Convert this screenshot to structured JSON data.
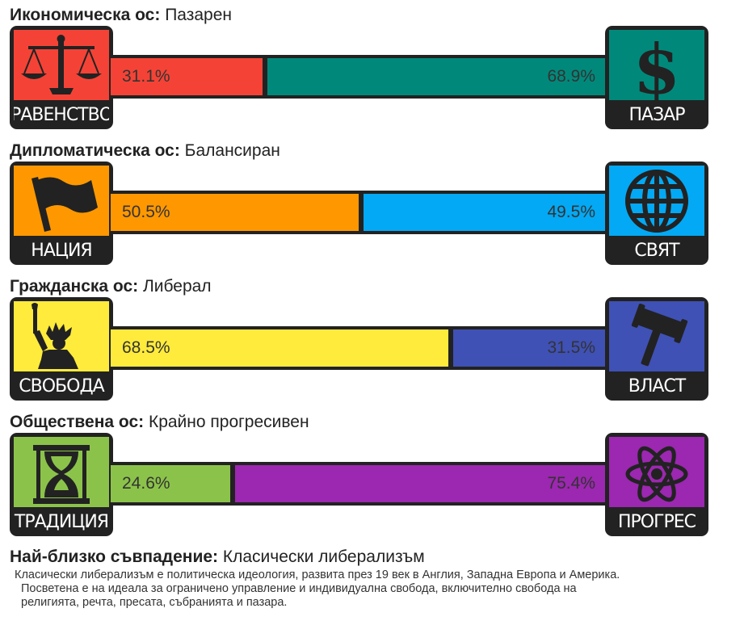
{
  "axes": [
    {
      "axis_name": "Икономическа ос:",
      "axis_value": "Пазарен",
      "left": {
        "label": "РАВЕНСТВО",
        "icon": "scales-icon",
        "color": "#f44336",
        "percent_text": "31.1%",
        "percent": 31.1
      },
      "right": {
        "label": "ПАЗАР",
        "icon": "dollar-icon",
        "color": "#00897b",
        "percent_text": "68.9%",
        "percent": 68.9
      }
    },
    {
      "axis_name": "Дипломатическа ос:",
      "axis_value": "Балансиран",
      "left": {
        "label": "НАЦИЯ",
        "icon": "flag-icon",
        "color": "#ff9800",
        "percent_text": "50.5%",
        "percent": 50.5
      },
      "right": {
        "label": "СВЯТ",
        "icon": "globe-icon",
        "color": "#03a9f4",
        "percent_text": "49.5%",
        "percent": 49.5
      }
    },
    {
      "axis_name": "Гражданска ос:",
      "axis_value": "Либерал",
      "left": {
        "label": "СВОБОДА",
        "icon": "statue-of-liberty-icon",
        "color": "#ffeb3b",
        "percent_text": "68.5%",
        "percent": 68.5
      },
      "right": {
        "label": "ВЛАСТ",
        "icon": "gavel-icon",
        "color": "#3f51b5",
        "percent_text": "31.5%",
        "percent": 31.5
      }
    },
    {
      "axis_name": "Обществена ос:",
      "axis_value": "Крайно прогресивен",
      "left": {
        "label": "ТРАДИЦИЯ",
        "icon": "hourglass-icon",
        "color": "#8bc34a",
        "percent_text": "24.6%",
        "percent": 24.6
      },
      "right": {
        "label": "ПРОГРЕС",
        "icon": "atom-icon",
        "color": "#9c27b0",
        "percent_text": "75.4%",
        "percent": 75.4
      }
    }
  ],
  "closest_match": {
    "label": "Най-близко съвпадение:",
    "value": "Класически либерализъм",
    "description_lines": [
      "Класически либерализъм е политическа идеология, развита през 19 век в Англия, Западна Европа и Америка.",
      "Посветена е на идеала за ограничено управление и индивидуална свобода, включително свобода на",
      "религията, речта, пресата, събранията и пазара."
    ]
  }
}
